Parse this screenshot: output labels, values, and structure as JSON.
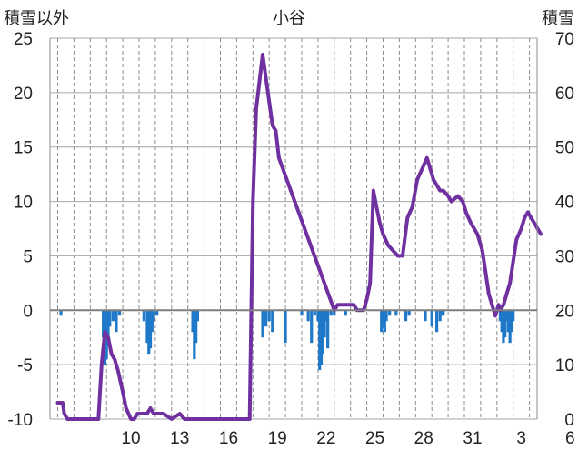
{
  "chart_data": {
    "type": "bar+line",
    "title": "小谷",
    "left_axis_label": "積雪以外",
    "right_axis_label": "積雪",
    "left_ylim": [
      -10,
      25
    ],
    "left_yticks": [
      "25",
      "20",
      "15",
      "10",
      "5",
      "0",
      "-5",
      "-10"
    ],
    "right_ylim": [
      0,
      70
    ],
    "right_yticks": [
      "70",
      "60",
      "50",
      "40",
      "30",
      "20",
      "10",
      "0"
    ],
    "x_tick_labels": [
      "10",
      "13",
      "16",
      "19",
      "22",
      "25",
      "28",
      "31",
      "3",
      "6"
    ],
    "x_day_count": 30,
    "grid": {
      "vertical_dashed": true,
      "horizontal": true
    },
    "bar_series": {
      "color": "#1f78c8",
      "days": [
        0.2,
        2.8,
        2.9,
        3.0,
        3.1,
        3.2,
        3.4,
        3.6,
        3.8,
        5.3,
        5.5,
        5.6,
        5.7,
        5.8,
        5.9,
        6.1,
        8.3,
        8.4,
        8.5,
        8.6,
        12.6,
        12.8,
        13.0,
        13.2,
        14.0,
        15.0,
        15.4,
        15.6,
        15.8,
        16.0,
        16.1,
        16.2,
        16.3,
        16.4,
        16.5,
        16.6,
        16.8,
        17.0,
        17.7,
        19.9,
        20.0,
        20.1,
        20.2,
        20.4,
        20.8,
        21.4,
        21.6,
        22.6,
        23.0,
        23.3,
        23.5,
        23.6,
        23.7,
        27.2,
        27.3,
        27.4,
        27.5,
        27.6,
        27.7,
        27.8,
        27.9,
        28.0
      ],
      "values": [
        -0.5,
        -2.5,
        -5.0,
        -4.5,
        -3.0,
        -1.5,
        -1.0,
        -2.0,
        -0.5,
        -1.0,
        -3.0,
        -4.0,
        -3.5,
        -2.0,
        -1.0,
        -0.5,
        -2.0,
        -4.5,
        -3.0,
        -1.0,
        -2.5,
        -1.5,
        -1.0,
        -2.0,
        -3.0,
        -0.5,
        -1.0,
        -3.0,
        -0.5,
        -1.0,
        -5.5,
        -5.0,
        -4.0,
        -2.5,
        -1.0,
        -3.5,
        -0.5,
        -0.5,
        -0.5,
        -2.0,
        -1.5,
        -2.0,
        -1.0,
        -0.5,
        -0.5,
        -1.0,
        -0.5,
        -1.0,
        -1.5,
        -2.0,
        -1.0,
        -0.5,
        -0.5,
        -1.0,
        -2.0,
        -3.0,
        -2.5,
        -1.0,
        -2.0,
        -3.0,
        -2.0,
        -1.0
      ]
    },
    "line_series": {
      "color": "#7030a0",
      "x": [
        0.0,
        0.3,
        0.4,
        0.6,
        2.5,
        2.7,
        2.9,
        3.1,
        3.3,
        3.5,
        3.7,
        4.0,
        4.2,
        4.5,
        4.7,
        4.9,
        5.1,
        5.3,
        5.5,
        5.7,
        5.9,
        6.2,
        6.5,
        7.0,
        7.5,
        7.8,
        8.1,
        8.6,
        8.9,
        9.2,
        11.8,
        12.0,
        12.2,
        12.6,
        13.2,
        13.4,
        13.6,
        17.0,
        17.2,
        17.4,
        17.6,
        17.9,
        18.2,
        18.4,
        18.6,
        18.8,
        19.0,
        19.2,
        19.4,
        19.6,
        19.8,
        20.0,
        20.3,
        20.6,
        20.9,
        21.2,
        21.5,
        21.8,
        22.1,
        22.4,
        22.7,
        22.9,
        23.1,
        23.3,
        23.5,
        23.7,
        24.0,
        24.2,
        24.6,
        24.9,
        25.1,
        25.4,
        25.8,
        26.1,
        26.3,
        26.5,
        26.7,
        26.9,
        27.1,
        27.2,
        27.4,
        27.6,
        27.8,
        28.0,
        28.2,
        28.5,
        28.7,
        28.9,
        29.1,
        29.3,
        29.5,
        29.7
      ],
      "values": [
        3,
        3,
        1,
        0,
        0,
        10,
        16,
        15,
        12,
        11,
        9,
        5,
        2,
        0,
        0,
        1,
        1,
        1,
        1,
        2,
        1,
        1,
        1,
        0,
        1,
        0,
        0,
        0,
        0,
        0,
        0,
        40,
        57,
        67,
        54,
        53,
        48,
        20,
        21,
        21,
        21,
        21,
        21,
        20,
        20,
        20,
        22,
        25,
        42,
        39,
        36,
        34,
        32,
        31,
        30,
        30,
        37,
        39,
        44,
        46,
        48,
        46,
        44,
        43,
        42,
        42,
        41,
        40,
        41,
        40,
        38,
        36,
        34,
        31,
        27,
        23,
        21,
        19,
        21,
        20,
        21,
        23,
        25,
        29,
        33,
        35,
        37,
        38,
        37,
        36,
        35,
        34
      ]
    }
  }
}
